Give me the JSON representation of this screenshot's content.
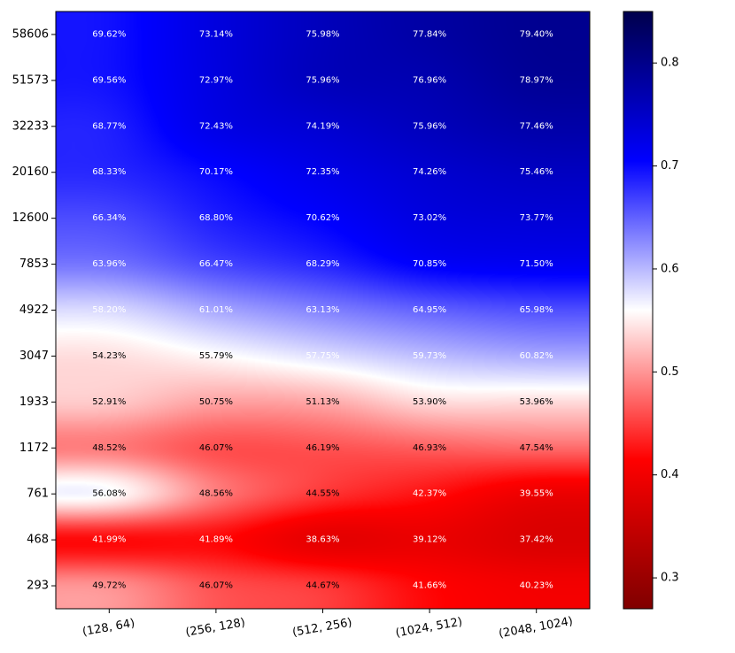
{
  "chart_data": {
    "type": "heatmap",
    "title": "",
    "xlabel": "",
    "ylabel": "",
    "x_categories": [
      "(128, 64)",
      "(256, 128)",
      "(512, 256)",
      "(1024, 512)",
      "(2048, 1024)"
    ],
    "y_categories": [
      "58606",
      "51573",
      "32233",
      "20160",
      "12600",
      "7853",
      "4922",
      "3047",
      "1933",
      "1172",
      "761",
      "468",
      "293"
    ],
    "values": [
      [
        69.62,
        73.14,
        75.98,
        77.84,
        79.4
      ],
      [
        69.56,
        72.97,
        75.96,
        76.96,
        78.97
      ],
      [
        68.77,
        72.43,
        74.19,
        75.96,
        77.46
      ],
      [
        68.33,
        70.17,
        72.35,
        74.26,
        75.46
      ],
      [
        66.34,
        68.8,
        70.62,
        73.02,
        73.77
      ],
      [
        63.96,
        66.47,
        68.29,
        70.85,
        71.5
      ],
      [
        58.2,
        61.01,
        63.13,
        64.95,
        65.98
      ],
      [
        54.23,
        55.79,
        57.75,
        59.73,
        60.82
      ],
      [
        52.91,
        50.75,
        51.13,
        53.9,
        53.96
      ],
      [
        48.52,
        46.07,
        46.19,
        46.93,
        47.54
      ],
      [
        56.08,
        48.56,
        44.55,
        42.37,
        39.55
      ],
      [
        41.99,
        41.89,
        38.63,
        39.12,
        37.42
      ],
      [
        49.72,
        46.07,
        44.67,
        41.66,
        40.23
      ]
    ],
    "labels": [
      [
        "69.62%",
        "73.14%",
        "75.98%",
        "77.84%",
        "79.40%"
      ],
      [
        "69.56%",
        "72.97%",
        "75.96%",
        "76.96%",
        "78.97%"
      ],
      [
        "68.77%",
        "72.43%",
        "74.19%",
        "75.96%",
        "77.46%"
      ],
      [
        "68.33%",
        "70.17%",
        "72.35%",
        "74.26%",
        "75.46%"
      ],
      [
        "66.34%",
        "68.80%",
        "70.62%",
        "73.02%",
        "73.77%"
      ],
      [
        "63.96%",
        "66.47%",
        "68.29%",
        "70.85%",
        "71.50%"
      ],
      [
        "58.20%",
        "61.01%",
        "63.13%",
        "64.95%",
        "65.98%"
      ],
      [
        "54.23%",
        "55.79%",
        "57.75%",
        "59.73%",
        "60.82%"
      ],
      [
        "52.91%",
        "50.75%",
        "51.13%",
        "53.90%",
        "53.96%"
      ],
      [
        "48.52%",
        "46.07%",
        "46.19%",
        "46.93%",
        "47.54%"
      ],
      [
        "56.08%",
        "48.56%",
        "44.55%",
        "42.37%",
        "39.55%"
      ],
      [
        "41.99%",
        "41.89%",
        "38.63%",
        "39.12%",
        "37.42%"
      ],
      [
        "49.72%",
        "46.07%",
        "44.67%",
        "41.66%",
        "40.23%"
      ]
    ],
    "colormap": "seismic_r",
    "colorbar": {
      "range": [
        0.27,
        0.85
      ],
      "center": 0.5,
      "ticks": [
        0.3,
        0.4,
        0.5,
        0.6,
        0.7,
        0.8
      ],
      "tick_labels": [
        "0.3",
        "0.4",
        "0.5",
        "0.6",
        "0.7",
        "0.8"
      ]
    },
    "interpolation": "smooth"
  }
}
